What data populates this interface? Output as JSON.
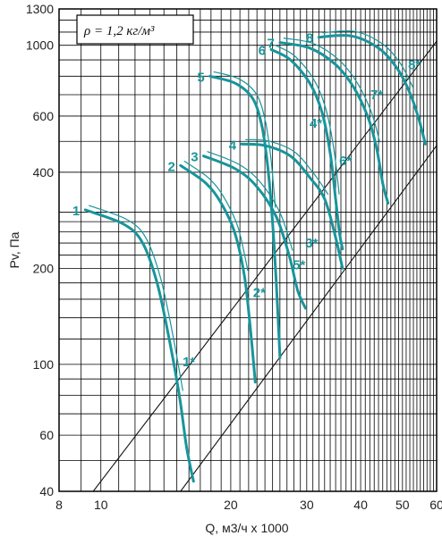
{
  "chart_data": {
    "type": "line",
    "xscale": "log",
    "yscale": "log",
    "xlabel": "Q, м3/ч x 1000",
    "ylabel": "Pv, Па",
    "xlim": [
      8,
      60
    ],
    "ylim": [
      40,
      1300
    ],
    "grid": true,
    "x_ticks": [
      8,
      10,
      20,
      30,
      40,
      50,
      60
    ],
    "y_ticks": [
      40,
      60,
      100,
      200,
      400,
      600,
      1000,
      1300
    ],
    "annotation": "ρ = 1,2 кг/м³",
    "colors": {
      "curve": "#17959b",
      "grid": "#000000"
    },
    "series": [
      {
        "label": "1",
        "points": [
          [
            9.2,
            305
          ],
          [
            11.3,
            275
          ],
          [
            12.5,
            240
          ],
          [
            13.5,
            180
          ],
          [
            14.4,
            120
          ],
          [
            15.2,
            80
          ],
          [
            15.8,
            55
          ],
          [
            16.4,
            43
          ]
        ]
      },
      {
        "label": "2",
        "points": [
          [
            15.3,
            420
          ],
          [
            17.5,
            370
          ],
          [
            19.0,
            320
          ],
          [
            20.4,
            260
          ],
          [
            21.5,
            190
          ],
          [
            22.2,
            130
          ],
          [
            22.8,
            88
          ]
        ]
      },
      {
        "label": "3",
        "points": [
          [
            17.3,
            450
          ],
          [
            20.5,
            410
          ],
          [
            23.0,
            360
          ],
          [
            25.5,
            290
          ],
          [
            27.3,
            220
          ],
          [
            28.6,
            170
          ],
          [
            29.8,
            150
          ]
        ]
      },
      {
        "label": "4",
        "points": [
          [
            21.2,
            490
          ],
          [
            24.0,
            485
          ],
          [
            27.5,
            450
          ],
          [
            30.5,
            385
          ],
          [
            33.0,
            330
          ],
          [
            35.0,
            250
          ],
          [
            36.3,
            200
          ]
        ]
      },
      {
        "label": "5",
        "points": [
          [
            17.9,
            800
          ],
          [
            20.5,
            760
          ],
          [
            22.5,
            680
          ],
          [
            23.6,
            560
          ],
          [
            24.3,
            430
          ],
          [
            24.9,
            300
          ],
          [
            25.5,
            180
          ],
          [
            26.0,
            105
          ]
        ]
      },
      {
        "label": "6",
        "points": [
          [
            24.8,
            970
          ],
          [
            27.5,
            900
          ],
          [
            30.5,
            760
          ],
          [
            32.5,
            620
          ],
          [
            34.0,
            460
          ],
          [
            35.0,
            330
          ],
          [
            35.7,
            260
          ],
          [
            36.3,
            230
          ]
        ]
      },
      {
        "label": "7",
        "points": [
          [
            26.0,
            1020
          ],
          [
            30.5,
            980
          ],
          [
            35.0,
            870
          ],
          [
            38.5,
            740
          ],
          [
            41.5,
            600
          ],
          [
            43.5,
            480
          ],
          [
            45.0,
            370
          ],
          [
            46.3,
            320
          ]
        ]
      },
      {
        "label": "8",
        "points": [
          [
            32.0,
            1060
          ],
          [
            38.0,
            1070
          ],
          [
            44.0,
            980
          ],
          [
            48.5,
            850
          ],
          [
            52.0,
            710
          ],
          [
            54.5,
            590
          ],
          [
            56.5,
            490
          ]
        ]
      }
    ],
    "annotations": [
      {
        "label": "1*",
        "x": 16.0,
        "y": 102
      },
      {
        "label": "2*",
        "x": 23.3,
        "y": 168
      },
      {
        "label": "3*",
        "x": 30.8,
        "y": 240
      },
      {
        "label": "4*",
        "x": 31.5,
        "y": 570
      },
      {
        "label": "5*",
        "x": 28.8,
        "y": 205
      },
      {
        "label": "6*",
        "x": 36.9,
        "y": 435
      },
      {
        "label": "7*",
        "x": 43.6,
        "y": 700
      },
      {
        "label": "8*",
        "x": 53.3,
        "y": 870
      }
    ],
    "reference_lines": [
      {
        "points": [
          [
            9.6,
            40
          ],
          [
            61,
            1060
          ]
        ]
      },
      {
        "points": [
          [
            15.3,
            40
          ],
          [
            61,
            500
          ]
        ]
      }
    ]
  }
}
